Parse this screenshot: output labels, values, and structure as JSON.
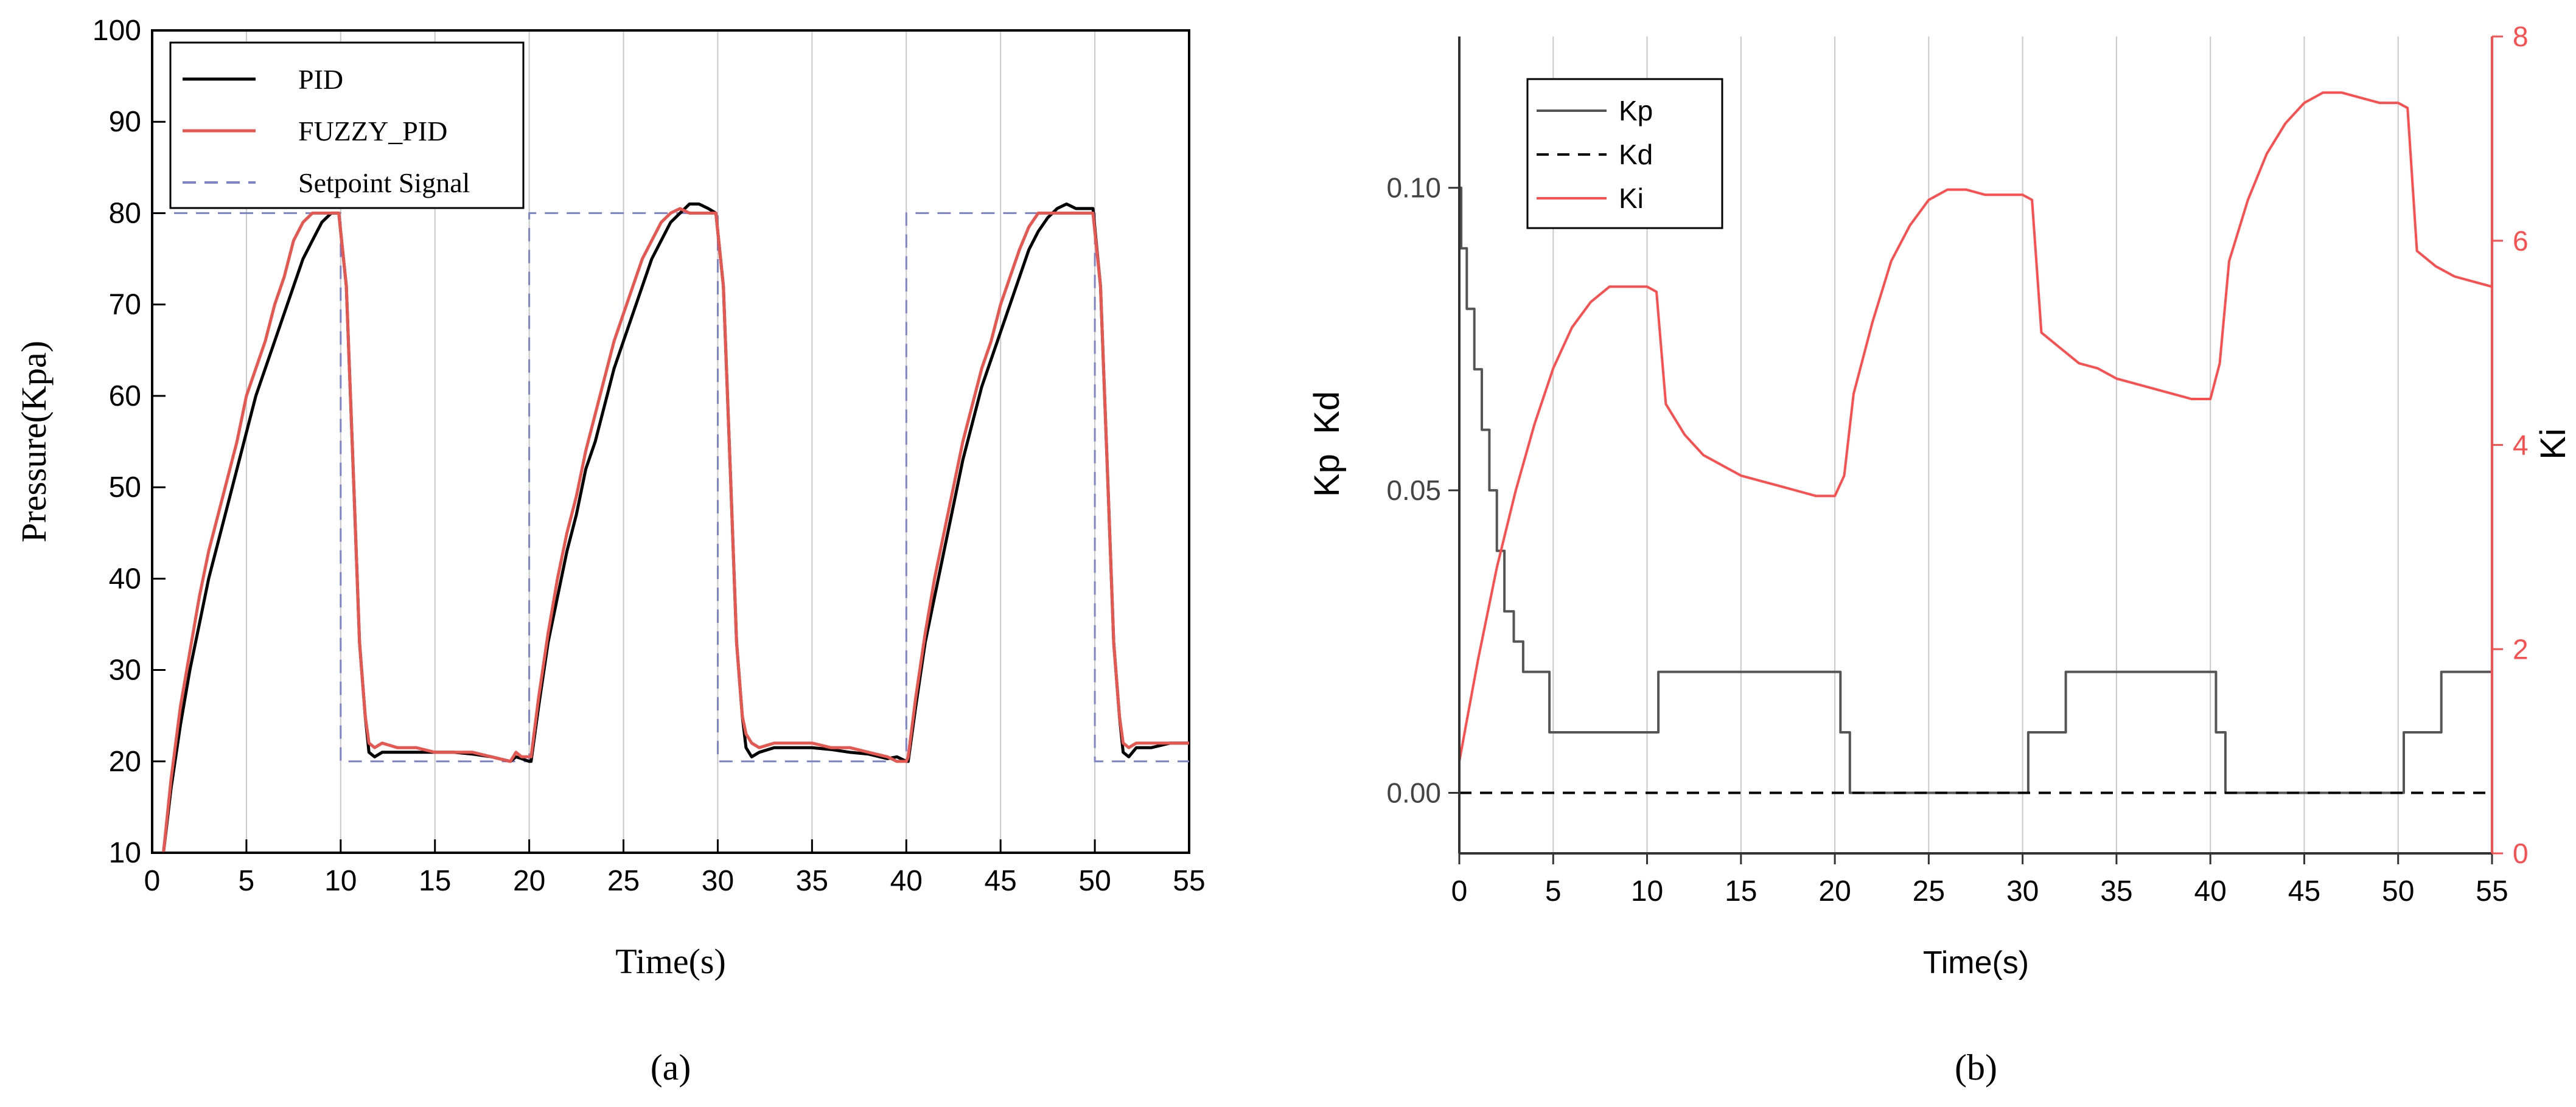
{
  "chart_data": [
    {
      "type": "line",
      "panel_label": "(a)",
      "xlabel": "Time(s)",
      "ylabel": "Pressure(Kpa)",
      "xlim": [
        0,
        55
      ],
      "ylim": [
        10,
        100
      ],
      "xticks": [
        0,
        5,
        10,
        15,
        20,
        25,
        30,
        35,
        40,
        45,
        50,
        55
      ],
      "yticks": [
        10,
        20,
        30,
        40,
        50,
        60,
        70,
        80,
        90,
        100
      ],
      "grid": "vertical",
      "legend_position": "top-left",
      "series": [
        {
          "name": "PID",
          "color": "#000000",
          "style": "solid",
          "x": [
            0.6,
            1.0,
            1.5,
            2.0,
            2.5,
            3.0,
            3.5,
            4.0,
            4.5,
            5.0,
            5.5,
            6.0,
            6.5,
            7.0,
            7.5,
            8.0,
            8.5,
            9.0,
            9.5,
            9.9,
            10.3,
            10.7,
            11.0,
            11.3,
            11.5,
            11.8,
            12.2,
            13.0,
            14.0,
            15.0,
            16.0,
            17.0,
            18.0,
            19.0,
            19.3,
            19.6,
            20.0,
            20.1,
            20.5,
            21.0,
            21.5,
            22.0,
            22.5,
            23.0,
            23.5,
            24.0,
            24.5,
            25.0,
            25.5,
            26.0,
            26.5,
            27.0,
            27.5,
            28.0,
            28.5,
            29.0,
            29.5,
            29.9,
            30.3,
            30.7,
            31.0,
            31.3,
            31.5,
            31.8,
            32.2,
            33.0,
            34.0,
            35.0,
            36.0,
            37.0,
            38.0,
            39.0,
            39.5,
            40.0,
            40.1,
            40.5,
            41.0,
            41.5,
            42.0,
            42.5,
            43.0,
            43.5,
            44.0,
            44.5,
            45.0,
            45.5,
            46.0,
            46.5,
            47.0,
            47.5,
            48.0,
            48.5,
            49.0,
            49.5,
            49.9,
            50.3,
            50.7,
            51.0,
            51.3,
            51.5,
            51.8,
            52.2,
            53.0,
            54.0,
            55.0
          ],
          "values": [
            10,
            17,
            24,
            30,
            35,
            40,
            44,
            48,
            52,
            56,
            60,
            63,
            66,
            69,
            72,
            75,
            77,
            79,
            80,
            80,
            72,
            50,
            33,
            25,
            21,
            20.5,
            21,
            21,
            21,
            21,
            21,
            20.8,
            20.5,
            20,
            20.5,
            20.3,
            20,
            20,
            26,
            33,
            38,
            43,
            47,
            52,
            55,
            59,
            63,
            66,
            69,
            72,
            75,
            77,
            79,
            80,
            81,
            81,
            80.5,
            80,
            72,
            50,
            33,
            25,
            21.5,
            20.5,
            21,
            21.5,
            21.5,
            21.5,
            21.3,
            21,
            20.8,
            20.3,
            20.5,
            20,
            20,
            26,
            33,
            38,
            43,
            48,
            53,
            57,
            61,
            64,
            67,
            70,
            73,
            76,
            78,
            79.5,
            80.5,
            81,
            80.5,
            80.5,
            80.5,
            72,
            50,
            33,
            25,
            21,
            20.5,
            21.5,
            21.5,
            22,
            22
          ]
        },
        {
          "name": "FUZZY_PID",
          "color": "#e8574f",
          "style": "solid",
          "x": [
            0.6,
            1.0,
            1.5,
            2.0,
            2.5,
            3.0,
            3.5,
            4.0,
            4.5,
            5.0,
            5.5,
            6.0,
            6.5,
            7.0,
            7.5,
            8.0,
            8.5,
            9.0,
            9.5,
            9.9,
            10.3,
            10.7,
            11.0,
            11.3,
            11.5,
            11.8,
            12.2,
            13.0,
            14.0,
            15.0,
            16.0,
            17.0,
            18.0,
            19.0,
            19.3,
            19.6,
            20.0,
            20.1,
            20.5,
            21.0,
            21.5,
            22.0,
            22.5,
            23.0,
            23.5,
            24.0,
            24.5,
            25.0,
            25.5,
            26.0,
            26.5,
            27.0,
            27.5,
            28.0,
            28.5,
            29.0,
            29.5,
            29.9,
            30.3,
            30.7,
            31.0,
            31.3,
            31.5,
            31.8,
            32.2,
            33.0,
            34.0,
            35.0,
            36.0,
            37.0,
            38.0,
            39.0,
            39.5,
            40.0,
            40.1,
            40.5,
            41.0,
            41.5,
            42.0,
            42.5,
            43.0,
            43.5,
            44.0,
            44.5,
            45.0,
            45.5,
            46.0,
            46.5,
            47.0,
            47.5,
            48.0,
            48.5,
            49.0,
            49.5,
            49.9,
            50.3,
            50.7,
            51.0,
            51.3,
            51.5,
            51.8,
            52.2,
            53.0,
            54.0,
            55.0
          ],
          "values": [
            10,
            18,
            26,
            32,
            38,
            43,
            47,
            51,
            55,
            60,
            63,
            66,
            70,
            73,
            77,
            79,
            80,
            80,
            80,
            80,
            72,
            50,
            33,
            25,
            22,
            21.5,
            22,
            21.5,
            21.5,
            21,
            21,
            21,
            20.5,
            20,
            21,
            20.5,
            20.5,
            20.5,
            27,
            34,
            40,
            45,
            49,
            54,
            58,
            62,
            66,
            69,
            72,
            75,
            77,
            79,
            80,
            80.5,
            80,
            80,
            80,
            80,
            72,
            50,
            33,
            25,
            23,
            22,
            21.5,
            22,
            22,
            22,
            21.5,
            21.5,
            21,
            20.5,
            20,
            20,
            20.5,
            27,
            34,
            40,
            45,
            50,
            55,
            59,
            63,
            66,
            70,
            73,
            76,
            78.5,
            80,
            80,
            80,
            80,
            80,
            80,
            80,
            72,
            50,
            33,
            25,
            22,
            21.5,
            22,
            22,
            22,
            22
          ]
        },
        {
          "name": "Setpoint Signal",
          "color": "#7b83c9",
          "style": "dashed",
          "x": [
            0,
            10,
            10,
            20,
            20,
            30,
            30,
            40,
            40,
            50,
            50,
            55
          ],
          "values": [
            80,
            80,
            20,
            20,
            80,
            80,
            20,
            20,
            80,
            80,
            20,
            20
          ]
        }
      ]
    },
    {
      "type": "line",
      "panel_label": "(b)",
      "xlabel": "Time(s)",
      "ylabel": "Kp  Kd",
      "y2label": "Ki",
      "xlim": [
        0,
        55
      ],
      "ylim": [
        -0.01,
        0.125
      ],
      "y2lim": [
        0,
        8
      ],
      "xticks": [
        0,
        5,
        10,
        15,
        20,
        25,
        30,
        35,
        40,
        45,
        50,
        55
      ],
      "yticks": [
        "0.00",
        "0.05",
        "0.10"
      ],
      "yticks_values": [
        0,
        0.05,
        0.1
      ],
      "y2ticks": [
        0,
        2,
        4,
        6,
        8
      ],
      "grid": "vertical",
      "legend_position": "top-left",
      "right_axis_color": "#ff4d4d",
      "series": [
        {
          "name": "Kp",
          "color": "#555555",
          "style": "solid",
          "axis": "left",
          "x": [
            0,
            0.1,
            0.1,
            0.4,
            0.4,
            0.8,
            0.8,
            1.2,
            1.2,
            1.6,
            1.6,
            2.0,
            2.0,
            2.4,
            2.4,
            2.9,
            2.9,
            3.4,
            3.4,
            3.8,
            3.8,
            4.8,
            4.8,
            10.6,
            10.6,
            20.3,
            20.3,
            20.8,
            20.8,
            30.3,
            30.3,
            32.3,
            32.3,
            40.3,
            40.3,
            40.8,
            40.8,
            50.3,
            50.3,
            52.3,
            52.3,
            55
          ],
          "values": [
            0.1,
            0.1,
            0.09,
            0.09,
            0.08,
            0.08,
            0.07,
            0.07,
            0.06,
            0.06,
            0.05,
            0.05,
            0.04,
            0.04,
            0.03,
            0.03,
            0.025,
            0.025,
            0.02,
            0.02,
            0.02,
            0.02,
            0.01,
            0.01,
            0.02,
            0.02,
            0.01,
            0.01,
            0,
            0,
            0.01,
            0.01,
            0.02,
            0.02,
            0.01,
            0.01,
            0,
            0,
            0.01,
            0.01,
            0.02,
            0.02
          ]
        },
        {
          "name": "Kd",
          "color": "#000000",
          "style": "dashed",
          "axis": "left",
          "x": [
            0,
            55
          ],
          "values": [
            0,
            0
          ]
        },
        {
          "name": "Ki",
          "color": "#ff4d4d",
          "style": "solid",
          "axis": "right",
          "x": [
            0,
            0.5,
            1,
            1.5,
            2,
            3,
            4,
            5,
            6,
            7,
            8,
            9,
            10,
            10.5,
            11,
            12,
            13,
            14,
            15,
            16,
            17,
            18,
            19,
            20,
            20.5,
            21,
            22,
            23,
            24,
            25,
            26,
            27,
            28,
            29,
            30,
            30.5,
            31,
            32,
            33,
            34,
            35,
            36,
            37,
            38,
            39,
            40,
            40.5,
            41,
            42,
            43,
            44,
            45,
            46,
            47,
            48,
            49,
            50,
            50.5,
            51,
            52,
            53,
            54,
            55
          ],
          "values": [
            0.9,
            1.4,
            1.9,
            2.35,
            2.8,
            3.55,
            4.2,
            4.75,
            5.15,
            5.4,
            5.55,
            5.55,
            5.55,
            5.5,
            4.4,
            4.1,
            3.9,
            3.8,
            3.7,
            3.65,
            3.6,
            3.55,
            3.5,
            3.5,
            3.7,
            4.5,
            5.2,
            5.8,
            6.15,
            6.4,
            6.5,
            6.5,
            6.45,
            6.45,
            6.45,
            6.4,
            5.1,
            4.95,
            4.8,
            4.75,
            4.65,
            4.6,
            4.55,
            4.5,
            4.45,
            4.45,
            4.8,
            5.8,
            6.4,
            6.85,
            7.15,
            7.35,
            7.45,
            7.45,
            7.4,
            7.35,
            7.35,
            7.3,
            5.9,
            5.75,
            5.65,
            5.6,
            5.55
          ]
        }
      ]
    }
  ]
}
